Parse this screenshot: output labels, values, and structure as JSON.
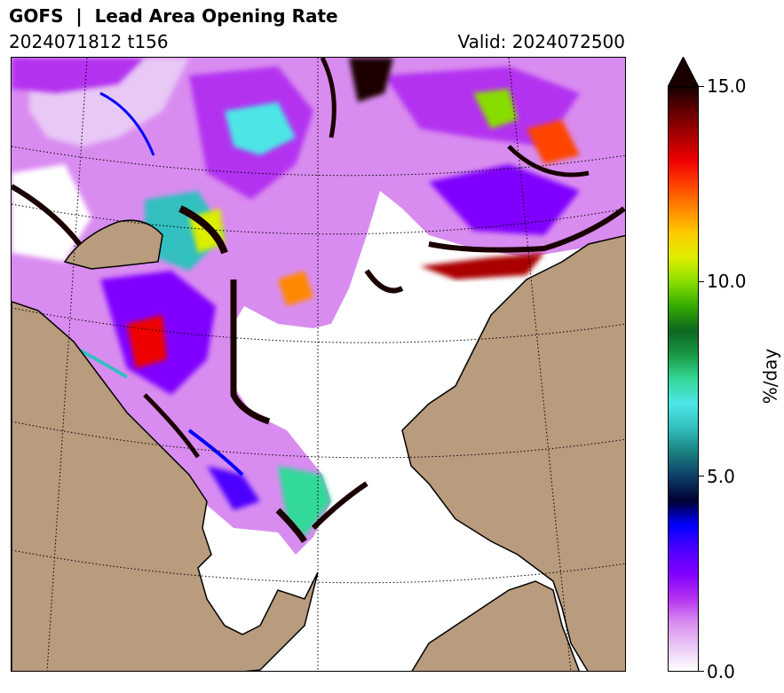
{
  "header": {
    "title": "GOFS  |  Lead Area Opening Rate",
    "run": "2024071812 t156",
    "valid": "Valid: 2024072500"
  },
  "map": {
    "land_color": "#b99b7e",
    "coastline_color": "#000000",
    "gridline_style": "dotted"
  },
  "colorbar": {
    "unit": "%/day",
    "min": 0.0,
    "max": 15.0,
    "extend": "max",
    "ticks": [
      "0.0",
      "5.0",
      "10.0",
      "15.0"
    ],
    "colors": [
      "#ffffff",
      "#e8c8f5",
      "#d98cf0",
      "#b330f0",
      "#8000ff",
      "#4d00ff",
      "#0000ff",
      "#000033",
      "#0d3d66",
      "#1a8080",
      "#33bfbf",
      "#4de6e6",
      "#33d999",
      "#1a9944",
      "#0d6622",
      "#33aa00",
      "#88dd00",
      "#ddee00",
      "#ffcc00",
      "#ff8800",
      "#ff4400",
      "#ee0000",
      "#aa0000",
      "#660000",
      "#1a0000"
    ]
  }
}
